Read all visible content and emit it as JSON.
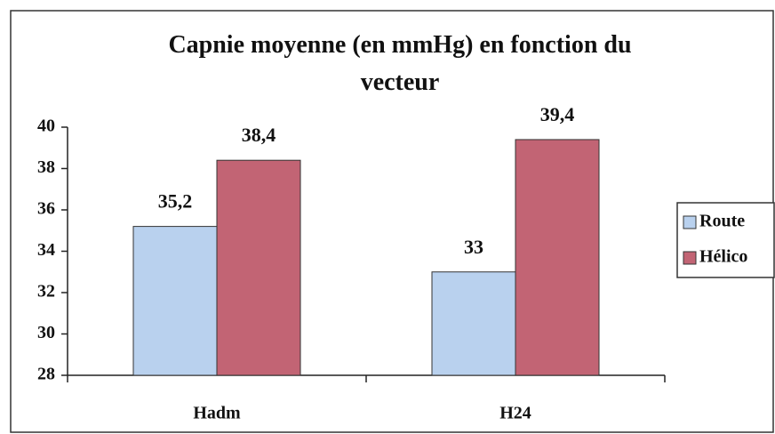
{
  "chart_data": {
    "type": "bar",
    "title": "Capnie moyenne (en mmHg) en fonction du vecteur",
    "categories": [
      "Hadm",
      "H24"
    ],
    "series": [
      {
        "name": "Route",
        "color": "#b9d1ee",
        "values": [
          35.2,
          33
        ],
        "value_labels": [
          "35,2",
          "33"
        ]
      },
      {
        "name": "Hélico",
        "color": "#c26474",
        "values": [
          38.4,
          39.4
        ],
        "value_labels": [
          "38,4",
          "39,4"
        ]
      }
    ],
    "ylim": [
      28,
      40
    ],
    "yticks": [
      28,
      30,
      32,
      34,
      36,
      38,
      40
    ],
    "grid": false,
    "legend": "right"
  }
}
